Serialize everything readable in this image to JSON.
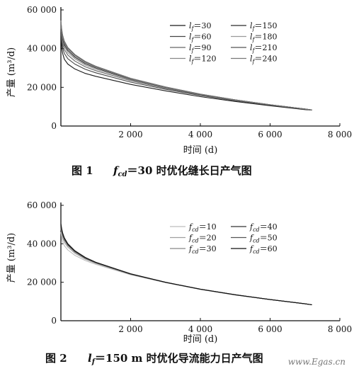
{
  "chart_data": [
    {
      "type": "line",
      "caption_label": "图 1",
      "caption_param": "f",
      "caption_sub": "cd",
      "caption_rest": "＝30 时优化缝长日产气图",
      "xlabel": "时间 (d)",
      "ylabel": "产量 (m³/d)",
      "xlim": [
        0,
        8000
      ],
      "ylim": [
        0,
        60000
      ],
      "xticks": [
        2000,
        4000,
        6000,
        8000
      ],
      "xtick_labels": [
        "2 000",
        "4 000",
        "6 000",
        "8 000"
      ],
      "yticks": [
        0,
        20000,
        40000,
        60000
      ],
      "ytick_labels": [
        "0",
        "20 000",
        "40 000",
        "60 000"
      ],
      "legend": {
        "position": "top-right",
        "param": "l",
        "sub": "f",
        "columns": [
          [
            "＝30",
            "＝60",
            "＝90",
            "＝120"
          ],
          [
            "＝150",
            "＝180",
            "＝210",
            "＝240"
          ]
        ]
      },
      "series": [
        {
          "name": "lf=30",
          "x": [
            0,
            25,
            50,
            100,
            200,
            400,
            700,
            1000,
            2000,
            3000,
            4000,
            5000,
            6000,
            7000,
            7200
          ],
          "y": [
            50000,
            40500,
            37500,
            34500,
            32000,
            29500,
            27200,
            25700,
            21500,
            18200,
            15200,
            12700,
            10500,
            8500,
            8200
          ]
        },
        {
          "name": "lf=60",
          "x": [
            0,
            25,
            50,
            100,
            200,
            400,
            700,
            1000,
            2000,
            3000,
            4000,
            5000,
            6000,
            7000,
            7200
          ],
          "y": [
            51000,
            43500,
            40500,
            37500,
            34800,
            32000,
            29300,
            27500,
            22700,
            19000,
            15800,
            13100,
            10800,
            8700,
            8300
          ]
        },
        {
          "name": "lf=90",
          "x": [
            0,
            25,
            50,
            100,
            200,
            400,
            700,
            1000,
            2000,
            3000,
            4000,
            5000,
            6000,
            7000,
            7200
          ],
          "y": [
            52000,
            45500,
            42500,
            39500,
            36700,
            33600,
            30600,
            28600,
            23400,
            19500,
            16100,
            13300,
            10900,
            8800,
            8300
          ]
        },
        {
          "name": "lf=120",
          "x": [
            0,
            25,
            50,
            100,
            200,
            400,
            700,
            1000,
            2000,
            3000,
            4000,
            5000,
            6000,
            7000,
            7200
          ],
          "y": [
            52500,
            47000,
            44000,
            41000,
            38000,
            34800,
            31500,
            29400,
            23900,
            19800,
            16300,
            13400,
            11000,
            8800,
            8300
          ]
        },
        {
          "name": "lf=150",
          "x": [
            0,
            25,
            50,
            100,
            200,
            400,
            700,
            1000,
            2000,
            3000,
            4000,
            5000,
            6000,
            7000,
            7200
          ],
          "y": [
            53000,
            48000,
            45000,
            42000,
            39000,
            35600,
            32200,
            30000,
            24200,
            20000,
            16400,
            13500,
            11000,
            8800,
            8300
          ]
        },
        {
          "name": "lf=180",
          "x": [
            0,
            25,
            50,
            100,
            200,
            400,
            700,
            1000,
            2000,
            3000,
            4000,
            5000,
            6000,
            7000,
            7200
          ],
          "y": [
            53500,
            48800,
            45800,
            42800,
            39700,
            36200,
            32700,
            30400,
            24400,
            20100,
            16500,
            13500,
            11000,
            8800,
            8300
          ]
        },
        {
          "name": "lf=210",
          "x": [
            0,
            25,
            50,
            100,
            200,
            400,
            700,
            1000,
            2000,
            3000,
            4000,
            5000,
            6000,
            7000,
            7200
          ],
          "y": [
            54000,
            49500,
            46500,
            43400,
            40200,
            36700,
            33100,
            30700,
            24600,
            20200,
            16500,
            13500,
            11000,
            8800,
            8300
          ]
        },
        {
          "name": "lf=240",
          "x": [
            0,
            25,
            50,
            100,
            200,
            400,
            700,
            1000,
            2000,
            3000,
            4000,
            5000,
            6000,
            7000,
            7200
          ],
          "y": [
            54500,
            50000,
            47000,
            43900,
            40600,
            37000,
            33400,
            30900,
            24700,
            20200,
            16500,
            13500,
            11000,
            8800,
            8300
          ]
        }
      ]
    },
    {
      "type": "line",
      "caption_label": "图 2",
      "caption_param": "l",
      "caption_sub": "f",
      "caption_rest": "＝150 m 时优化导流能力日产气图",
      "xlabel": "时间 (d)",
      "ylabel": "产量 (m³/d)",
      "xlim": [
        0,
        8000
      ],
      "ylim": [
        0,
        60000
      ],
      "xticks": [
        2000,
        4000,
        6000,
        8000
      ],
      "xtick_labels": [
        "2 000",
        "4 000",
        "6 000",
        "8 000"
      ],
      "yticks": [
        0,
        20000,
        40000,
        60000
      ],
      "ytick_labels": [
        "0",
        "20 000",
        "40 000",
        "60 000"
      ],
      "legend": {
        "position": "top-right",
        "param": "f",
        "sub": "cd",
        "columns": [
          [
            "＝10",
            "＝20",
            "＝30"
          ],
          [
            "＝40",
            "＝50",
            "＝60"
          ]
        ]
      },
      "series": [
        {
          "name": "fcd=10",
          "x": [
            0,
            25,
            50,
            100,
            200,
            400,
            700,
            1000,
            2000,
            3000,
            4000,
            5000,
            6000,
            7000,
            7200
          ],
          "y": [
            46000,
            43000,
            41000,
            39000,
            36800,
            34000,
            31300,
            29300,
            23900,
            19800,
            16300,
            13400,
            11000,
            8800,
            8300
          ]
        },
        {
          "name": "fcd=20",
          "x": [
            0,
            25,
            50,
            100,
            200,
            400,
            700,
            1000,
            2000,
            3000,
            4000,
            5000,
            6000,
            7000,
            7200
          ],
          "y": [
            48000,
            45000,
            43000,
            40800,
            38300,
            35100,
            32000,
            29800,
            24100,
            19900,
            16300,
            13400,
            11000,
            8800,
            8300
          ]
        },
        {
          "name": "fcd=30",
          "x": [
            0,
            25,
            50,
            100,
            200,
            400,
            700,
            1000,
            2000,
            3000,
            4000,
            5000,
            6000,
            7000,
            7200
          ],
          "y": [
            49000,
            46200,
            44200,
            41900,
            39100,
            35700,
            32400,
            30000,
            24200,
            20000,
            16400,
            13400,
            11000,
            8800,
            8300
          ]
        },
        {
          "name": "fcd=40",
          "x": [
            0,
            25,
            50,
            100,
            200,
            400,
            700,
            1000,
            2000,
            3000,
            4000,
            5000,
            6000,
            7000,
            7200
          ],
          "y": [
            49500,
            46800,
            44800,
            42400,
            39500,
            36000,
            32600,
            30200,
            24300,
            20000,
            16400,
            13500,
            11000,
            8800,
            8300
          ]
        },
        {
          "name": "fcd=50",
          "x": [
            0,
            25,
            50,
            100,
            200,
            400,
            700,
            1000,
            2000,
            3000,
            4000,
            5000,
            6000,
            7000,
            7200
          ],
          "y": [
            50000,
            47300,
            45200,
            42800,
            39800,
            36200,
            32800,
            30300,
            24300,
            20000,
            16400,
            13500,
            11000,
            8800,
            8300
          ]
        },
        {
          "name": "fcd=60",
          "x": [
            0,
            25,
            50,
            100,
            200,
            400,
            700,
            1000,
            2000,
            3000,
            4000,
            5000,
            6000,
            7000,
            7200
          ],
          "y": [
            50500,
            47700,
            45600,
            43100,
            40000,
            36400,
            32900,
            30400,
            24400,
            20000,
            16400,
            13500,
            11000,
            8800,
            8300
          ]
        }
      ]
    }
  ],
  "watermark": "www.Egas.cn"
}
